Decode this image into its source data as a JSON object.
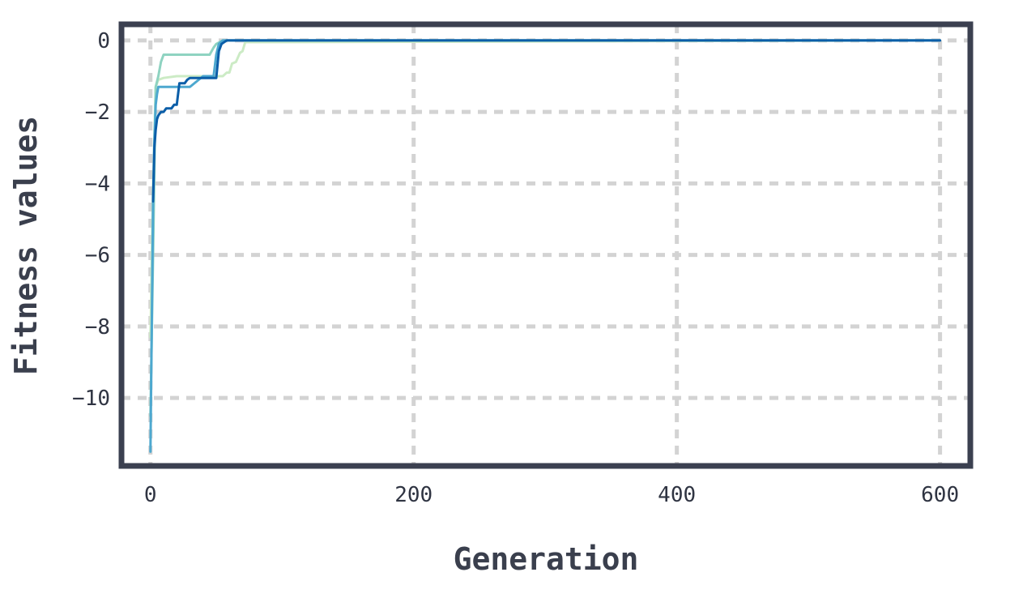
{
  "chart_data": {
    "type": "line",
    "title": "",
    "xlabel": "Generation",
    "ylabel": "Fitness values",
    "xlim": [
      -22,
      623
    ],
    "ylim": [
      -11.9,
      0.45
    ],
    "xticks": [
      0,
      200,
      400,
      600
    ],
    "xtick_labels": [
      "0",
      "200",
      "400",
      "600"
    ],
    "yticks": [
      0,
      -2,
      -4,
      -6,
      -8,
      -10
    ],
    "ytick_labels": [
      "0",
      "−2",
      "−4",
      "−6",
      "−8",
      "−10"
    ],
    "grid": true,
    "legend": "none",
    "series": [
      {
        "color": "#ccebc5",
        "x": [
          0,
          2,
          4,
          6,
          10,
          20,
          40,
          55,
          58,
          60,
          62,
          65,
          68,
          70,
          72,
          600
        ],
        "y": [
          -8.3,
          -4.0,
          -1.3,
          -1.1,
          -1.05,
          -1.0,
          -1.0,
          -1.0,
          -0.9,
          -0.9,
          -0.65,
          -0.6,
          -0.35,
          -0.3,
          -0.05,
          0.0
        ]
      },
      {
        "color": "#8fd3c1",
        "x": [
          0,
          2,
          4,
          6,
          8,
          10,
          15,
          30,
          45,
          48,
          50,
          55,
          600
        ],
        "y": [
          -10.5,
          -6.0,
          -1.3,
          -1.0,
          -0.6,
          -0.4,
          -0.4,
          -0.4,
          -0.4,
          -0.2,
          -0.1,
          0.0,
          0.0
        ]
      },
      {
        "color": "#4da8cf",
        "x": [
          0,
          1,
          2,
          3,
          4,
          5,
          6,
          8,
          10,
          20,
          30,
          40,
          48,
          50,
          52,
          55,
          600
        ],
        "y": [
          -11.5,
          -8.0,
          -4.5,
          -2.8,
          -1.8,
          -1.5,
          -1.3,
          -1.3,
          -1.3,
          -1.3,
          -1.3,
          -1.0,
          -1.0,
          -0.4,
          -0.1,
          0.0,
          0.0
        ]
      },
      {
        "color": "#0b5ea8",
        "x": [
          2,
          3,
          4,
          5,
          6,
          8,
          10,
          12,
          14,
          16,
          18,
          20,
          22,
          24,
          26,
          28,
          30,
          35,
          40,
          50,
          52,
          54,
          56,
          58,
          600
        ],
        "y": [
          -4.5,
          -3.0,
          -2.5,
          -2.2,
          -2.1,
          -2.0,
          -2.0,
          -1.9,
          -1.9,
          -1.9,
          -1.8,
          -1.8,
          -1.2,
          -1.2,
          -1.2,
          -1.1,
          -1.05,
          -1.05,
          -1.05,
          -1.05,
          -0.3,
          -0.1,
          -0.05,
          0.0,
          0.0
        ]
      }
    ]
  }
}
